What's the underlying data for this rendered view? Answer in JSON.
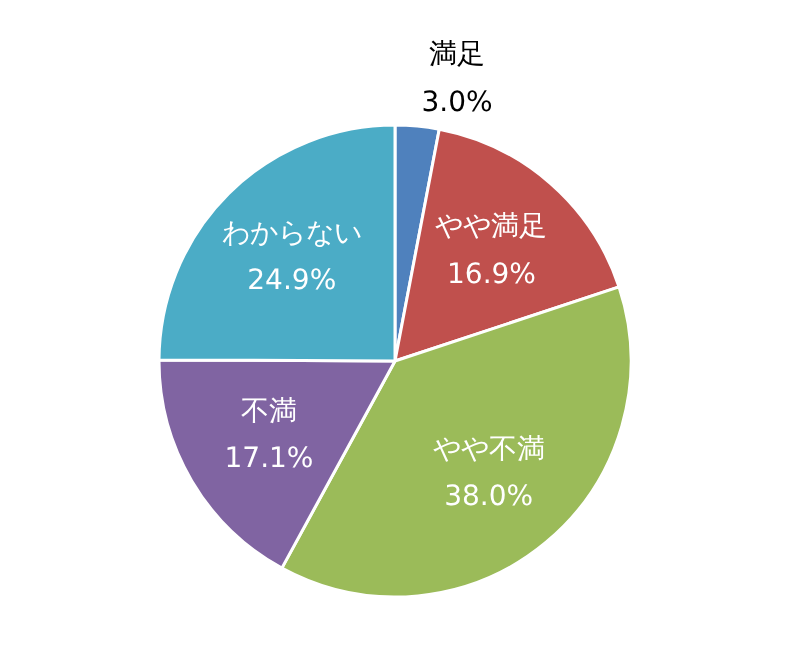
{
  "chart_data": {
    "type": "pie",
    "categories": [
      "満足",
      "やや満足",
      "やや不満",
      "不満",
      "わからない"
    ],
    "values": [
      3.0,
      16.9,
      38.0,
      17.1,
      24.9
    ],
    "value_labels": [
      "3.0%",
      "16.9%",
      "38.0%",
      "17.1%",
      "24.9%"
    ],
    "colors": [
      "#4f81bd",
      "#c0504d",
      "#9bbb59",
      "#8064a2",
      "#4bacc6"
    ]
  }
}
